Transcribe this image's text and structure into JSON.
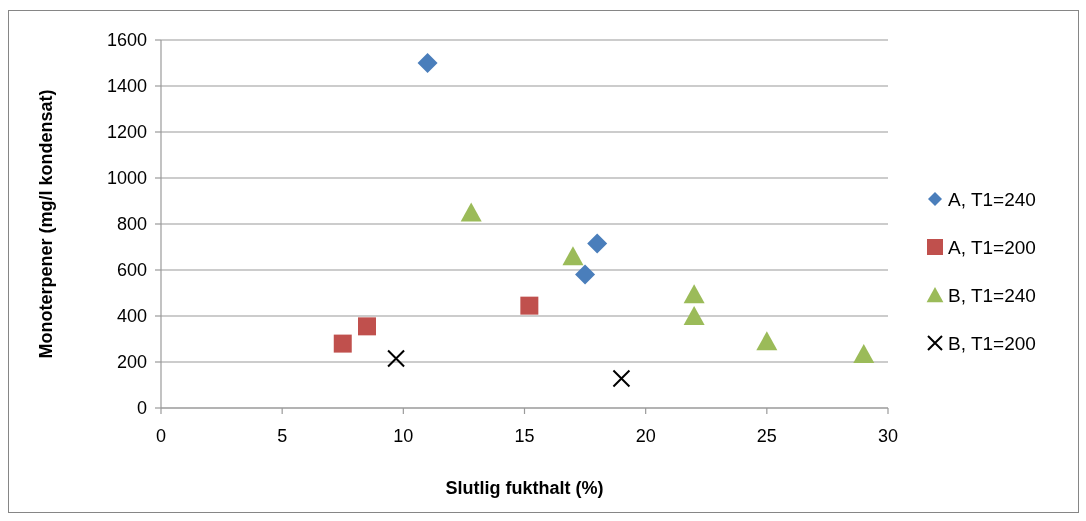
{
  "chart_data": {
    "type": "scatter",
    "xlabel": "Slutlig fukthalt (%)",
    "ylabel": "Monoterpener (mg/l kondensat)",
    "xlim": [
      0,
      30
    ],
    "xticks": [
      0,
      5,
      10,
      15,
      20,
      25,
      30
    ],
    "ylim": [
      0,
      1600
    ],
    "yticks": [
      0,
      200,
      400,
      600,
      800,
      1000,
      1200,
      1400,
      1600
    ],
    "grid": "y",
    "legend": "right",
    "series": [
      {
        "name": "A, T1=240",
        "color": "#4a7ebb",
        "marker": "diamond",
        "x": [
          11.0,
          18.0,
          17.5
        ],
        "values": [
          1500,
          715,
          580
        ]
      },
      {
        "name": "A, T1=200",
        "color": "#c0504d",
        "marker": "square",
        "x": [
          7.5,
          8.5,
          15.2
        ],
        "values": [
          280,
          355,
          445
        ]
      },
      {
        "name": "B, T1=240",
        "color": "#9bbb59",
        "marker": "triangle",
        "x": [
          12.8,
          17.0,
          22.0,
          22.0,
          25.0,
          29.0
        ],
        "values": [
          850,
          660,
          495,
          400,
          290,
          235
        ]
      },
      {
        "name": "B, T1=200",
        "color": "#000000",
        "marker": "cross",
        "x": [
          9.7,
          19.0
        ],
        "values": [
          215,
          128
        ]
      }
    ]
  }
}
